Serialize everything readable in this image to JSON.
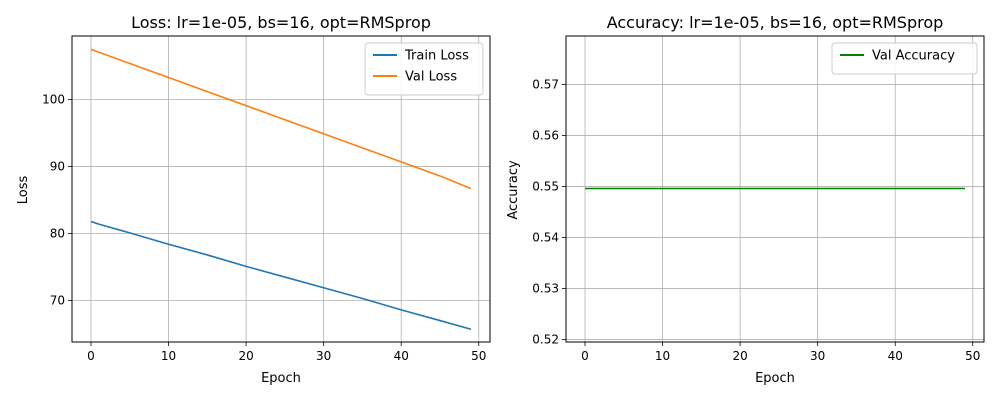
{
  "chart_data": [
    {
      "type": "line",
      "title": "Loss: lr=1e-05, bs=16, opt=RMSprop",
      "xlabel": "Epoch",
      "ylabel": "Loss",
      "xlim": [
        -2.45,
        51.45
      ],
      "ylim": [
        63.8,
        109.5
      ],
      "xticks": [
        0,
        10,
        20,
        30,
        40,
        50
      ],
      "yticks": [
        70,
        80,
        90,
        100
      ],
      "grid": true,
      "legend_position": "top-right",
      "series": [
        {
          "name": "Train Loss",
          "color": "#1f77b4",
          "x": [
            0,
            1,
            5,
            10,
            15,
            20,
            25,
            30,
            35,
            40,
            45,
            49
          ],
          "y": [
            81.8,
            81.4,
            80.1,
            78.4,
            76.8,
            75.1,
            73.5,
            71.9,
            70.3,
            68.6,
            67.0,
            65.7
          ]
        },
        {
          "name": "Val Loss",
          "color": "#ff7f0e",
          "x": [
            0,
            5,
            10,
            15,
            20,
            25,
            30,
            35,
            40,
            45,
            49
          ],
          "y": [
            107.5,
            105.4,
            103.3,
            101.2,
            99.1,
            97.0,
            94.9,
            92.8,
            90.7,
            88.6,
            86.7
          ]
        }
      ]
    },
    {
      "type": "line",
      "title": "Accuracy: lr=1e-05, bs=16, opt=RMSprop",
      "xlabel": "Epoch",
      "ylabel": "Accuracy",
      "xlim": [
        -2.45,
        51.45
      ],
      "ylim": [
        0.5195,
        0.5795
      ],
      "xticks": [
        0,
        10,
        20,
        30,
        40,
        50
      ],
      "yticks": [
        0.52,
        0.53,
        0.54,
        0.55,
        0.56,
        0.57
      ],
      "ytick_decimals": 2,
      "grid": true,
      "legend_position": "top-right",
      "series": [
        {
          "name": "Val Accuracy",
          "color": "#008000",
          "x": [
            0,
            49
          ],
          "y": [
            0.5496,
            0.5496
          ]
        }
      ]
    }
  ]
}
